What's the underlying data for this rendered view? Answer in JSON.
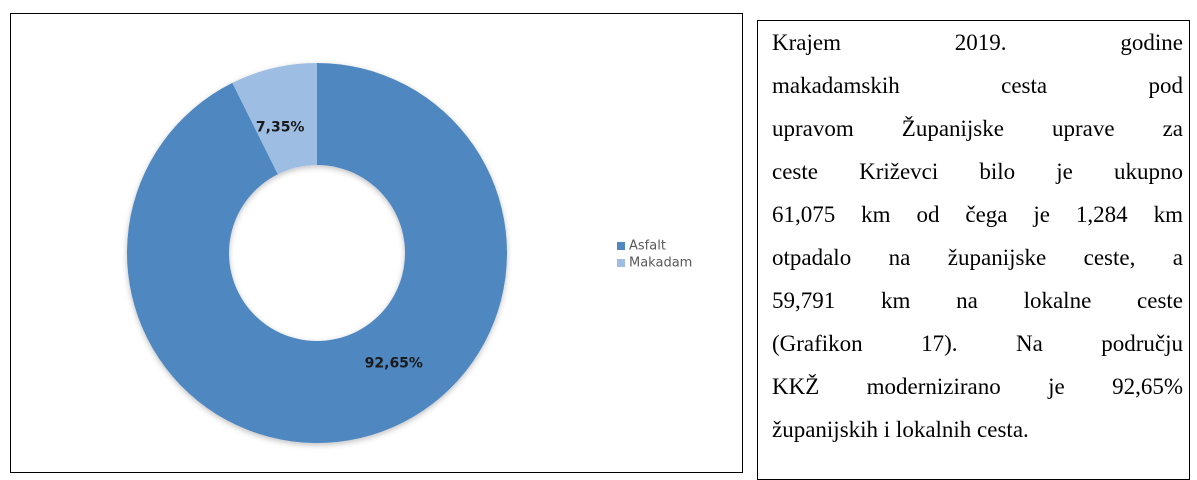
{
  "chart_data": {
    "type": "donut",
    "categories": [
      "Asfalt",
      "Makadam"
    ],
    "values": [
      92.65,
      7.35
    ],
    "value_labels": [
      "92,65%",
      "7,35%"
    ],
    "colors": [
      "#4f87c1",
      "#9dbde2"
    ],
    "legend": "right"
  },
  "text_box": {
    "lines": [
      "Krajem 2019. godine",
      "makadamskih cesta pod",
      "upravom Županijske uprave za",
      "ceste Križevci bilo je ukupno",
      "61,075 km od čega je 1,284 km",
      "otpadalo na županijske ceste, a",
      "59,791 km na lokalne ceste",
      "(Grafikon 17). Na području",
      "KKŽ modernizirano je 92,65%",
      "županijskih i lokalnih cesta."
    ]
  }
}
